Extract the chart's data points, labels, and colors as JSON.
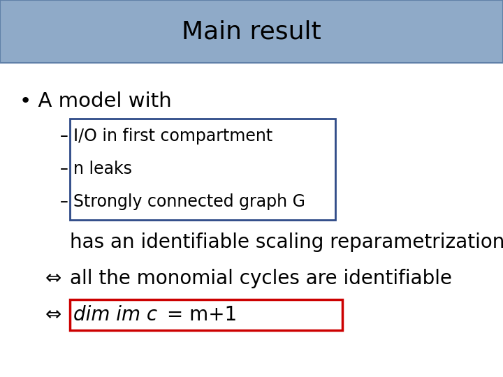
{
  "title": "Main result",
  "title_bg_color": "#8faac8",
  "title_border_color": "#6080a8",
  "title_fontsize": 26,
  "bg_color": "#ffffff",
  "bullet": "•",
  "bullet_text": "A model with",
  "bullet_fontsize": 21,
  "sub_items": [
    "I/O in first compartment",
    "n leaks",
    "Strongly connected graph G"
  ],
  "sub_dash": "–",
  "sub_fontsize": 17,
  "blue_box_color": "#2e4a87",
  "line1": "has an identifiable scaling reparametrization",
  "line1_fontsize": 20,
  "line2_prefix": "⇔",
  "line2_text": "all the monomial cycles are identifiable",
  "line2_fontsize": 20,
  "line3_prefix": "⇔",
  "line3_italic": "dim im c",
  "line3_normal": " = m+1",
  "line3_fontsize": 20,
  "red_box_color": "#cc0000"
}
